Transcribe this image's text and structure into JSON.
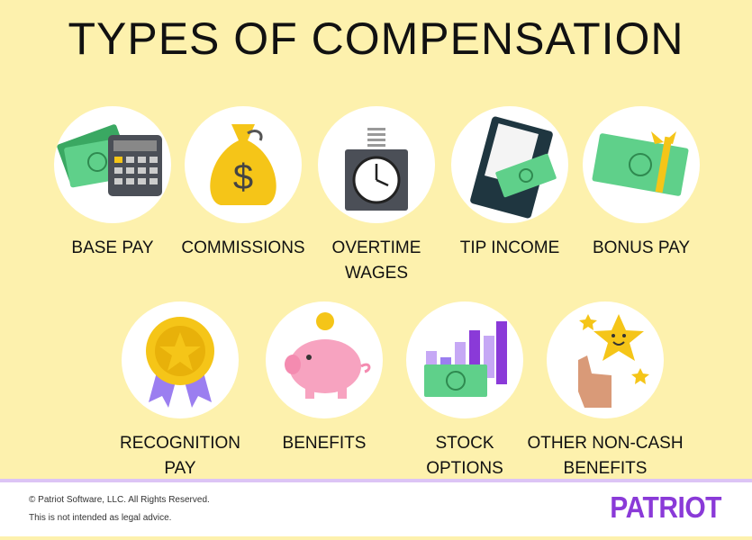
{
  "title": "TYPES OF COMPENSATION",
  "items": [
    {
      "label": "BASE PAY",
      "icon": "cash-calculator-icon"
    },
    {
      "label": "COMMISSIONS",
      "icon": "money-bag-icon"
    },
    {
      "label": "OVERTIME WAGES",
      "icon": "time-clock-icon"
    },
    {
      "label": "TIP INCOME",
      "icon": "receipt-cash-icon"
    },
    {
      "label": "BONUS PAY",
      "icon": "gift-cash-icon"
    },
    {
      "label": "RECOGNITION PAY",
      "icon": "medal-icon"
    },
    {
      "label": "BENEFITS",
      "icon": "piggy-bank-icon"
    },
    {
      "label": "STOCK OPTIONS",
      "icon": "bar-chart-cash-icon"
    },
    {
      "label": "OTHER NON-CASH BENEFITS",
      "icon": "thumbs-up-star-icon"
    }
  ],
  "footer": {
    "copyright": "© Patriot Software, LLC. All Rights Reserved.",
    "disclaimer": "This is not intended as legal advice.",
    "logo": "PATRIOT"
  },
  "colors": {
    "background": "#fdf1ad",
    "brand": "#8a3ad8",
    "cash": "#4fc37a"
  }
}
